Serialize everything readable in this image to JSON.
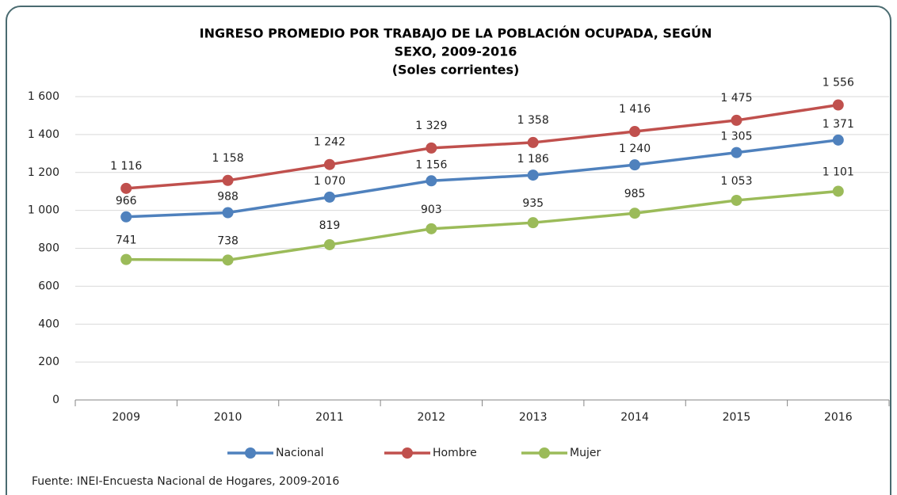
{
  "chart_data": {
    "type": "line",
    "title": [
      "INGRESO PROMEDIO POR TRABAJO DE LA POBLACIÓN OCUPADA, SEGÚN",
      "SEXO, 2009-2016"
    ],
    "subtitle": "(Soles corrientes)",
    "source": "Fuente: INEI-Encuesta Nacional de Hogares, 2009-2016",
    "categories": [
      "2009",
      "2010",
      "2011",
      "2012",
      "2013",
      "2014",
      "2015",
      "2016"
    ],
    "series": [
      {
        "name": "Nacional",
        "color": "#4f81bd",
        "values": [
          966,
          988,
          1070,
          1156,
          1186,
          1240,
          1305,
          1371
        ],
        "value_labels": [
          "966",
          "988",
          "1 070",
          "1 156",
          "1 186",
          "1 240",
          "1 305",
          "1 371"
        ]
      },
      {
        "name": "Hombre",
        "color": "#c0504d",
        "values": [
          1116,
          1158,
          1242,
          1329,
          1358,
          1416,
          1475,
          1556
        ],
        "value_labels": [
          "1 116",
          "1 158",
          "1 242",
          "1 329",
          "1 358",
          "1 416",
          "1 475",
          "1 556"
        ]
      },
      {
        "name": "Mujer",
        "color": "#9bbb59",
        "values": [
          741,
          738,
          819,
          903,
          935,
          985,
          1053,
          1101
        ],
        "value_labels": [
          "741",
          "738",
          "819",
          "903",
          "935",
          "985",
          "1 053",
          "1 101"
        ]
      }
    ],
    "ylim": [
      0,
      1600
    ],
    "yticks": [
      0,
      200,
      400,
      600,
      800,
      {
        "value": 1000,
        "label": "1 000"
      },
      {
        "value": 1200,
        "label": "1 200"
      },
      {
        "value": 1400,
        "label": "1 400"
      },
      {
        "value": 1600,
        "label": "1 600"
      }
    ],
    "grid": true,
    "legend": "bottom"
  }
}
